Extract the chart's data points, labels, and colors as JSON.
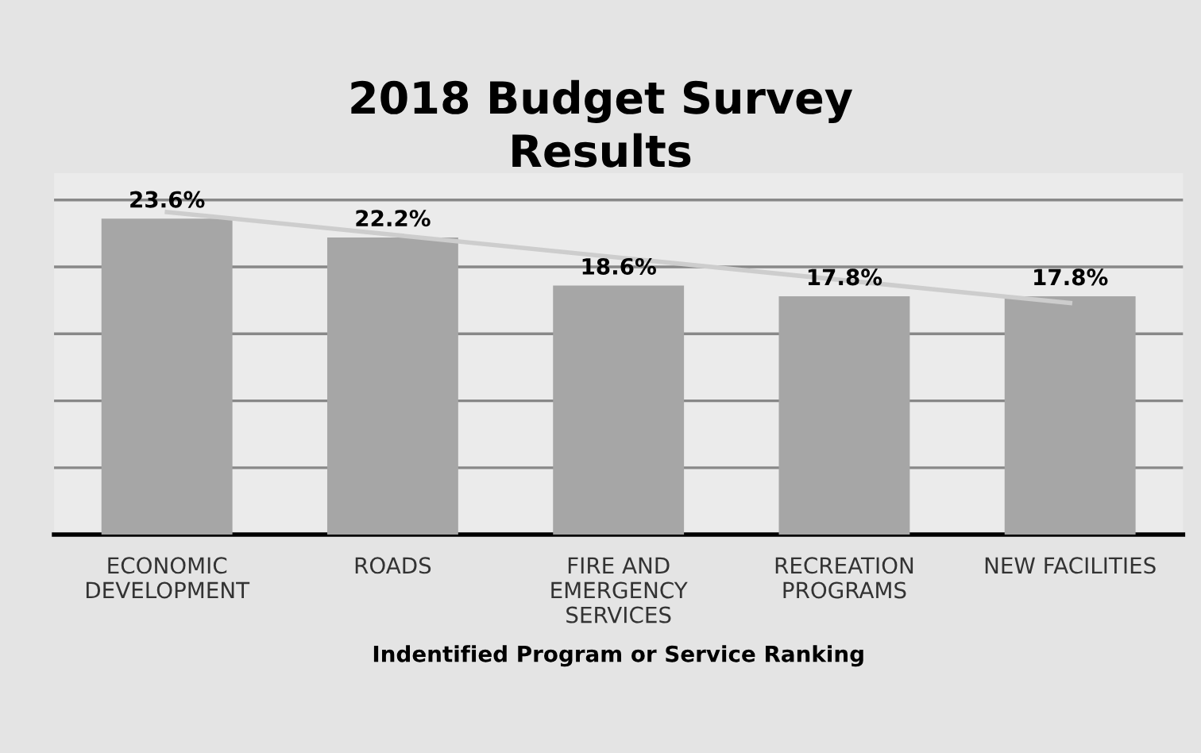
{
  "chart_data": {
    "type": "bar",
    "title": "2018 Budget Survey\nResults",
    "xlabel": "Indentified Program or Service Ranking",
    "categories": [
      "ECONOMIC\nDEVELOPMENT",
      "ROADS",
      "FIRE AND\nEMERGENCY\nSERVICES",
      "RECREATION\nPROGRAMS",
      "NEW FACILITIES"
    ],
    "series": [
      {
        "color": "#a6a6a6",
        "values": [
          23.6,
          22.2,
          18.6,
          17.8,
          17.8
        ],
        "value_labels": [
          "23.6%",
          "22.2%",
          "18.6%",
          "17.8%",
          "17.8%"
        ]
      },
      {
        "type": "line",
        "color": "#cdcdcd",
        "values": [
          24.1,
          22.4,
          20.7,
          19.0,
          17.3
        ]
      }
    ],
    "ylim": [
      0,
      27
    ],
    "yticks": [
      {
        "value": 5,
        "label": null
      },
      {
        "value": 10,
        "label": null
      },
      {
        "value": 15,
        "label": null
      },
      {
        "value": 20,
        "label": null
      },
      {
        "value": 25,
        "label": null
      }
    ],
    "grid": "y",
    "tick_labels": "x",
    "legend": false,
    "marker": "none"
  }
}
